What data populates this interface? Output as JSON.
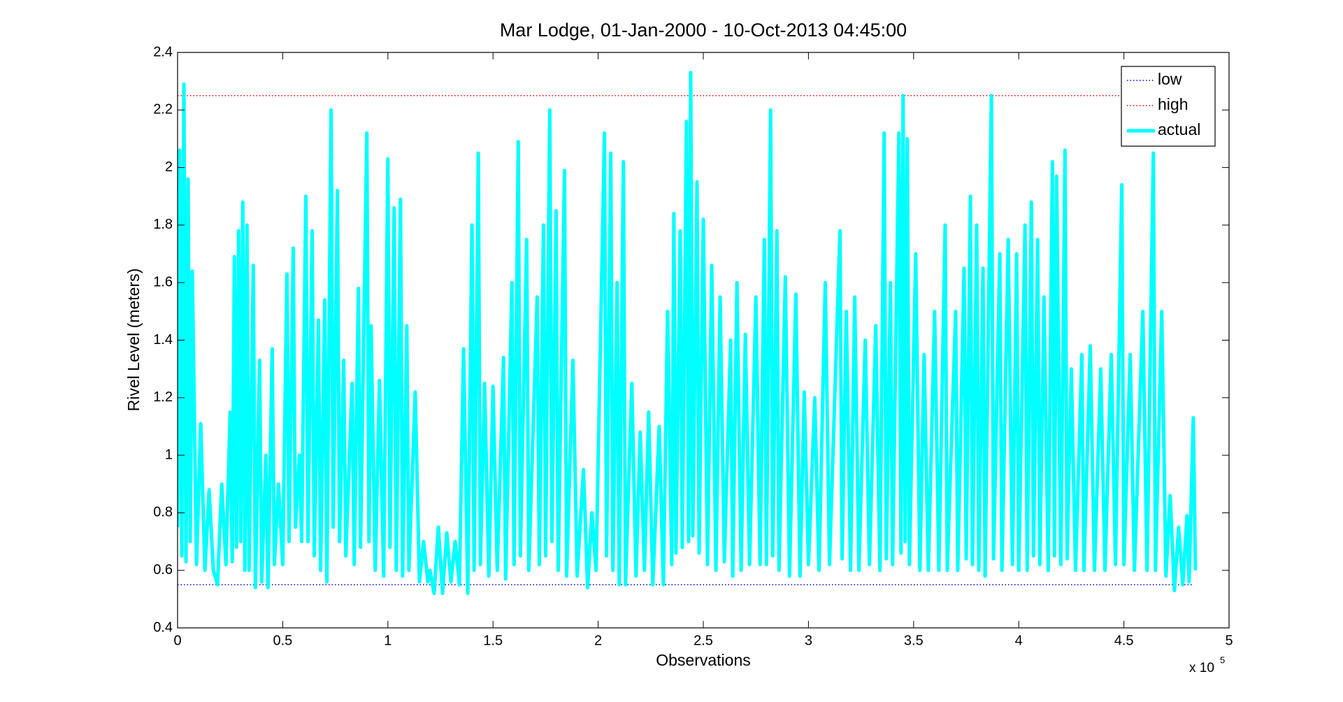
{
  "chart_data": {
    "type": "line",
    "title": "Mar Lodge, 01-Jan-2000 - 10-Oct-2013 04:45:00",
    "x_label": "Observations",
    "y_label": "Rivel Level (meters)",
    "x_multiplier": {
      "base": "x 10",
      "exponent": "5"
    },
    "xlim": [
      0,
      5
    ],
    "xticks": [
      0,
      0.5,
      1,
      1.5,
      2,
      2.5,
      3,
      3.5,
      4,
      4.5,
      5
    ],
    "ylim": [
      0.4,
      2.4
    ],
    "yticks": [
      0.4,
      0.6,
      0.8,
      1,
      1.2,
      1.4,
      1.6,
      1.8,
      2,
      2.2,
      2.4
    ],
    "grid": false,
    "legend": "top-right",
    "series": [
      {
        "name": "low",
        "color": "#0000ff",
        "style": "dotted",
        "x": [
          0,
          4.83
        ],
        "values": [
          0.55,
          0.55
        ]
      },
      {
        "name": "high",
        "color": "#ff0000",
        "style": "dotted",
        "x": [
          0,
          4.83
        ],
        "values": [
          2.25,
          2.25
        ]
      },
      {
        "name": "actual",
        "color": "#00ffff",
        "style": "solid",
        "x": [
          0,
          0.01,
          0.02,
          0.03,
          0.04,
          0.05,
          0.06,
          0.07,
          0.09,
          0.11,
          0.13,
          0.15,
          0.17,
          0.19,
          0.21,
          0.23,
          0.25,
          0.26,
          0.27,
          0.28,
          0.29,
          0.3,
          0.31,
          0.32,
          0.33,
          0.34,
          0.36,
          0.37,
          0.39,
          0.4,
          0.42,
          0.43,
          0.45,
          0.46,
          0.48,
          0.5,
          0.52,
          0.53,
          0.55,
          0.56,
          0.58,
          0.59,
          0.61,
          0.62,
          0.64,
          0.65,
          0.67,
          0.68,
          0.7,
          0.71,
          0.73,
          0.74,
          0.76,
          0.77,
          0.79,
          0.8,
          0.83,
          0.84,
          0.86,
          0.87,
          0.9,
          0.91,
          0.92,
          0.94,
          0.96,
          0.98,
          1.0,
          1.01,
          1.03,
          1.04,
          1.06,
          1.07,
          1.09,
          1.1,
          1.13,
          1.15,
          1.17,
          1.19,
          1.2,
          1.22,
          1.24,
          1.26,
          1.28,
          1.3,
          1.32,
          1.34,
          1.36,
          1.38,
          1.4,
          1.41,
          1.43,
          1.44,
          1.46,
          1.48,
          1.5,
          1.52,
          1.55,
          1.56,
          1.59,
          1.6,
          1.62,
          1.63,
          1.66,
          1.67,
          1.71,
          1.72,
          1.74,
          1.75,
          1.77,
          1.78,
          1.8,
          1.81,
          1.84,
          1.85,
          1.88,
          1.9,
          1.93,
          1.95,
          1.97,
          1.99,
          2.03,
          2.04,
          2.06,
          2.07,
          2.09,
          2.1,
          2.12,
          2.13,
          2.16,
          2.18,
          2.2,
          2.22,
          2.24,
          2.26,
          2.29,
          2.31,
          2.33,
          2.35,
          2.36,
          2.37,
          2.39,
          2.4,
          2.42,
          2.43,
          2.44,
          2.45,
          2.47,
          2.48,
          2.5,
          2.52,
          2.54,
          2.56,
          2.58,
          2.6,
          2.63,
          2.64,
          2.66,
          2.68,
          2.7,
          2.72,
          2.75,
          2.77,
          2.79,
          2.8,
          2.82,
          2.83,
          2.85,
          2.86,
          2.89,
          2.91,
          2.94,
          2.96,
          2.98,
          3.0,
          3.03,
          3.05,
          3.08,
          3.1,
          3.15,
          3.16,
          3.18,
          3.2,
          3.22,
          3.24,
          3.27,
          3.29,
          3.32,
          3.34,
          3.36,
          3.37,
          3.39,
          3.4,
          3.43,
          3.44,
          3.45,
          3.46,
          3.47,
          3.48,
          3.51,
          3.53,
          3.55,
          3.57,
          3.6,
          3.62,
          3.65,
          3.66,
          3.7,
          3.71,
          3.74,
          3.75,
          3.77,
          3.78,
          3.8,
          3.81,
          3.83,
          3.84,
          3.87,
          3.88,
          3.91,
          3.92,
          3.95,
          3.97,
          3.99,
          4.0,
          4.03,
          4.04,
          4.06,
          4.07,
          4.09,
          4.1,
          4.12,
          4.14,
          4.16,
          4.17,
          4.18,
          4.2,
          4.22,
          4.23,
          4.25,
          4.27,
          4.3,
          4.31,
          4.34,
          4.36,
          4.39,
          4.41,
          4.44,
          4.46,
          4.49,
          4.5,
          4.53,
          4.55,
          4.59,
          4.61,
          4.64,
          4.65,
          4.68,
          4.7,
          4.72,
          4.74,
          4.76,
          4.78,
          4.8,
          4.81,
          4.83,
          4.84
        ],
        "values": [
          0.75,
          2.06,
          0.65,
          2.29,
          0.63,
          1.96,
          0.7,
          1.64,
          0.62,
          1.11,
          0.6,
          0.88,
          0.6,
          0.55,
          0.9,
          0.62,
          1.15,
          0.63,
          1.69,
          0.68,
          1.78,
          0.7,
          1.88,
          0.6,
          1.8,
          0.6,
          1.66,
          0.54,
          1.33,
          0.56,
          1.0,
          0.54,
          1.37,
          0.62,
          0.9,
          0.62,
          1.63,
          0.7,
          1.72,
          0.75,
          1.0,
          0.7,
          1.9,
          0.7,
          1.78,
          0.65,
          1.47,
          0.6,
          1.54,
          0.56,
          2.2,
          0.75,
          1.92,
          0.7,
          1.33,
          0.65,
          1.25,
          0.62,
          1.58,
          0.68,
          2.12,
          0.7,
          1.45,
          0.6,
          1.26,
          0.58,
          2.03,
          0.68,
          1.86,
          0.6,
          1.89,
          0.58,
          1.45,
          0.6,
          1.22,
          0.56,
          0.7,
          0.56,
          0.6,
          0.52,
          0.75,
          0.52,
          0.73,
          0.56,
          0.7,
          0.55,
          1.37,
          0.52,
          1.8,
          0.6,
          2.05,
          0.62,
          1.25,
          0.58,
          1.24,
          0.6,
          1.34,
          0.57,
          1.6,
          0.62,
          2.09,
          0.65,
          1.75,
          0.6,
          1.55,
          0.62,
          1.8,
          0.65,
          2.2,
          0.7,
          1.85,
          0.6,
          1.99,
          0.58,
          1.33,
          0.58,
          0.95,
          0.54,
          0.8,
          0.6,
          2.12,
          0.65,
          2.05,
          0.6,
          1.6,
          0.55,
          2.02,
          0.55,
          1.25,
          0.58,
          1.08,
          0.6,
          1.15,
          0.55,
          1.1,
          0.55,
          1.5,
          0.62,
          1.84,
          0.66,
          1.78,
          0.68,
          2.16,
          0.7,
          2.33,
          0.72,
          1.95,
          0.66,
          1.82,
          0.62,
          1.66,
          0.6,
          1.55,
          0.63,
          1.4,
          0.58,
          1.6,
          0.6,
          1.42,
          0.62,
          1.55,
          0.62,
          1.75,
          0.62,
          2.2,
          0.65,
          1.78,
          0.6,
          1.62,
          0.58,
          1.56,
          0.58,
          1.22,
          0.62,
          1.2,
          0.6,
          1.6,
          0.62,
          1.78,
          0.64,
          1.5,
          0.6,
          1.55,
          0.6,
          1.4,
          0.62,
          1.45,
          0.6,
          2.12,
          0.64,
          1.6,
          0.62,
          2.12,
          0.66,
          2.25,
          0.7,
          2.1,
          0.62,
          1.7,
          0.6,
          1.35,
          0.6,
          1.5,
          0.6,
          1.8,
          0.6,
          1.5,
          0.6,
          1.65,
          0.64,
          1.9,
          0.62,
          1.8,
          0.6,
          1.65,
          0.58,
          2.25,
          0.64,
          1.7,
          0.6,
          1.75,
          0.62,
          1.7,
          0.6,
          1.8,
          0.6,
          1.88,
          0.65,
          1.75,
          0.62,
          1.55,
          0.6,
          2.02,
          0.65,
          1.97,
          0.62,
          2.06,
          0.64,
          1.3,
          0.6,
          1.35,
          0.6,
          1.38,
          0.6,
          1.3,
          0.6,
          1.35,
          0.62,
          1.94,
          0.62,
          1.35,
          0.6,
          1.5,
          0.6,
          2.05,
          0.6,
          1.5,
          0.58,
          0.86,
          0.53,
          0.75,
          0.55,
          0.79,
          0.56,
          1.13,
          0.6
        ]
      }
    ]
  }
}
